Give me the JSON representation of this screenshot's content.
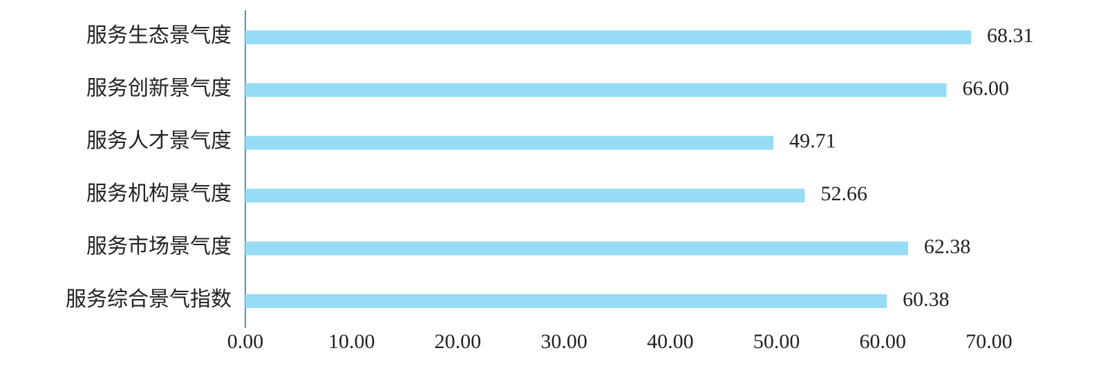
{
  "chart_data": {
    "type": "barh",
    "categories": [
      "服务生态景气度",
      "服务创新景气度",
      "服务人才景气度",
      "服务机构景气度",
      "服务市场景气度",
      "服务综合景气指数"
    ],
    "values": [
      68.31,
      66,
      49.71,
      52.66,
      62.38,
      60.38
    ],
    "value_labels": [
      "68.31",
      "66.00",
      "49.71",
      "52.66",
      "62.38",
      "60.38"
    ],
    "color": "#97dcf5",
    "xlim": [
      0,
      70
    ],
    "xticks": [
      {
        "value": 0,
        "label": "0.00"
      },
      {
        "value": 10,
        "label": "10.00"
      },
      {
        "value": 20,
        "label": "20.00"
      },
      {
        "value": 30,
        "label": "30.00"
      },
      {
        "value": 40,
        "label": "40.00"
      },
      {
        "value": 50,
        "label": "50.00"
      },
      {
        "value": 60,
        "label": "60.00"
      },
      {
        "value": 70,
        "label": "70.00"
      }
    ],
    "grid": false
  }
}
